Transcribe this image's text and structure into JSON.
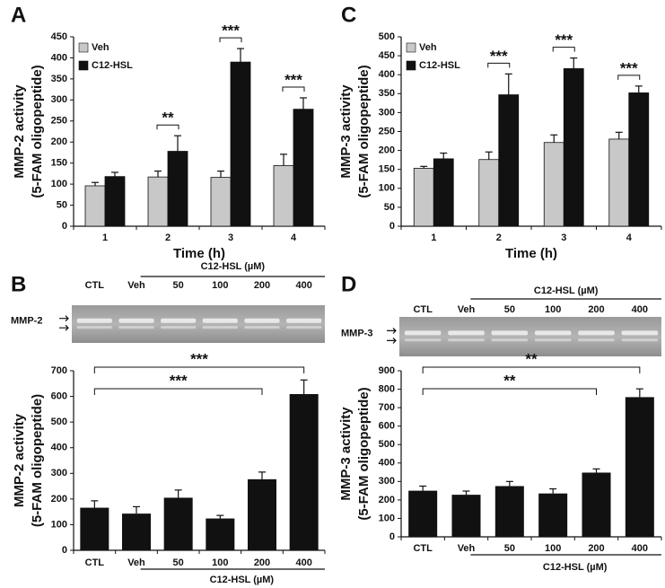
{
  "chart_data": [
    {
      "type": "grouped-bar",
      "panel": "A",
      "ylabel": [
        "MMP-2 activity",
        "(5-FAM oligopeptide)"
      ],
      "xlabel": "Time (h)",
      "categories": [
        "1",
        "2",
        "3",
        "4"
      ],
      "series": [
        {
          "name": "Veh",
          "color": "#c8c8c8",
          "values": [
            96,
            117,
            116,
            144
          ],
          "errors": [
            8,
            14,
            15,
            27
          ]
        },
        {
          "name": "C12-HSL",
          "color": "#111111",
          "values": [
            118,
            178,
            390,
            278
          ],
          "errors": [
            10,
            37,
            32,
            27
          ]
        }
      ],
      "ylim": [
        0,
        450
      ],
      "yticks": [
        0,
        50,
        100,
        150,
        200,
        250,
        300,
        350,
        400,
        450
      ],
      "legend": "upper left",
      "annotations": [
        {
          "text": "**",
          "category": "2"
        },
        {
          "text": "***",
          "category": "3"
        },
        {
          "text": "***",
          "category": "4"
        }
      ]
    },
    {
      "type": "grouped-bar",
      "panel": "C",
      "ylabel": [
        "MMP-3 activity",
        "(5-FAM oligopeptide)"
      ],
      "xlabel": "Time (h)",
      "categories": [
        "1",
        "2",
        "3",
        "4"
      ],
      "series": [
        {
          "name": "Veh",
          "color": "#c8c8c8",
          "values": [
            153,
            176,
            221,
            230
          ],
          "errors": [
            5,
            20,
            20,
            18
          ]
        },
        {
          "name": "C12-HSL",
          "color": "#111111",
          "values": [
            178,
            347,
            416,
            352
          ],
          "errors": [
            15,
            55,
            28,
            18
          ]
        }
      ],
      "ylim": [
        0,
        500
      ],
      "yticks": [
        0,
        50,
        100,
        150,
        200,
        250,
        300,
        350,
        400,
        450,
        500
      ],
      "legend": "upper left",
      "annotations": [
        {
          "text": "***",
          "category": "2"
        },
        {
          "text": "***",
          "category": "3"
        },
        {
          "text": "***",
          "category": "4"
        }
      ]
    },
    {
      "type": "bar",
      "panel": "B",
      "ylabel": [
        "MMP-2 activity",
        "(5-FAM oligopeptide)"
      ],
      "gel_label": "MMP-2",
      "group_label": "C12-HSL (µM)",
      "categories": [
        "CTL",
        "Veh",
        "50",
        "100",
        "200",
        "400"
      ],
      "values": [
        166,
        143,
        205,
        124,
        277,
        609
      ],
      "errors": [
        27,
        27,
        30,
        12,
        28,
        55
      ],
      "color": "#111111",
      "ylim": [
        0,
        700
      ],
      "yticks": [
        0,
        100,
        200,
        300,
        400,
        500,
        600,
        700
      ],
      "annotations": [
        {
          "text": "***",
          "from": "CTL",
          "to": "200"
        },
        {
          "text": "***",
          "from": "CTL",
          "to": "400"
        }
      ]
    },
    {
      "type": "bar",
      "panel": "D",
      "ylabel": [
        "MMP-3 activity",
        "(5-FAM oligopeptide)"
      ],
      "gel_label": "MMP-3",
      "group_label": "C12-HSL (µM)",
      "categories": [
        "CTL",
        "Veh",
        "50",
        "100",
        "200",
        "400"
      ],
      "values": [
        250,
        228,
        275,
        235,
        348,
        757
      ],
      "errors": [
        25,
        20,
        25,
        25,
        20,
        45
      ],
      "color": "#111111",
      "ylim": [
        0,
        900
      ],
      "yticks": [
        0,
        100,
        200,
        300,
        400,
        500,
        600,
        700,
        800,
        900
      ],
      "annotations": [
        {
          "text": "**",
          "from": "CTL",
          "to": "200"
        },
        {
          "text": "**",
          "from": "CTL",
          "to": "400"
        }
      ]
    }
  ]
}
